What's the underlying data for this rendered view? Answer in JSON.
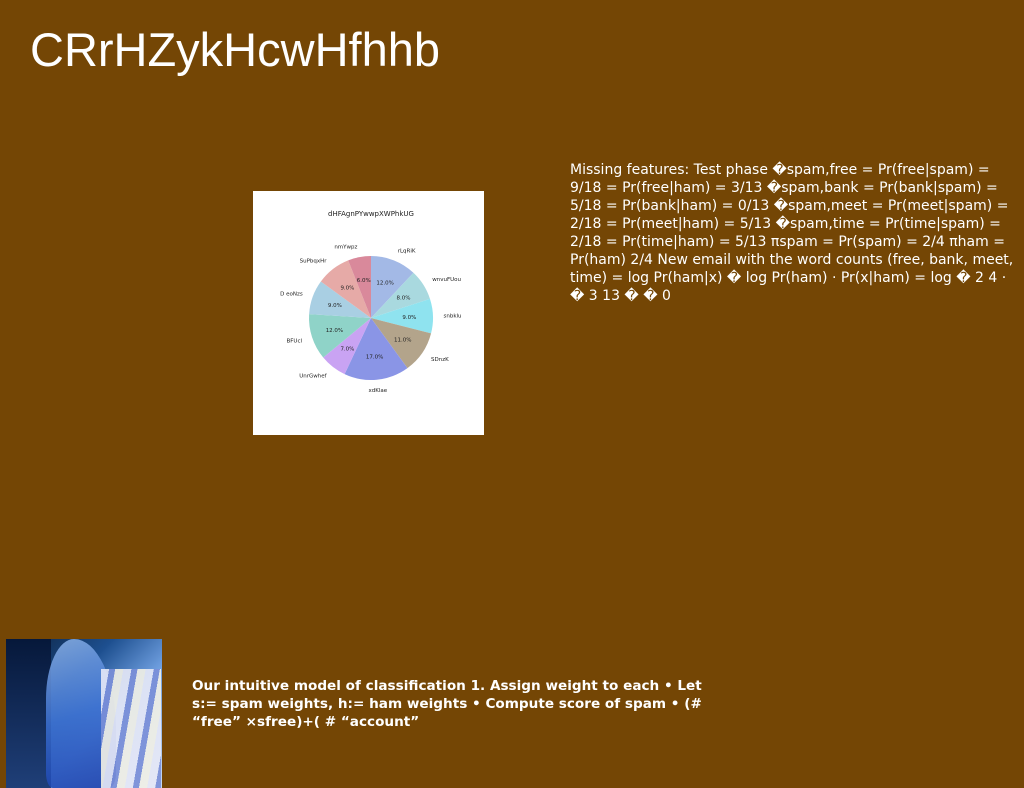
{
  "title": "CRrHZykHcwHfhhb",
  "chart_data": {
    "type": "pie",
    "title": "dHFAgnPYwwpXWPhkUG",
    "slices": [
      {
        "label": "rLqRiK",
        "value": 12.0,
        "pct_label": "12.0%",
        "color": "#a3b9e6"
      },
      {
        "label": "wnvuFUou",
        "value": 8.0,
        "pct_label": "8.0%",
        "color": "#a9d9df"
      },
      {
        "label": "snbklu",
        "value": 9.0,
        "pct_label": "9.0%",
        "color": "#8fe3ef"
      },
      {
        "label": "SDnzK",
        "value": 11.0,
        "pct_label": "11.0%",
        "color": "#b3a48b"
      },
      {
        "label": "xdKlae",
        "value": 17.0,
        "pct_label": "17.0%",
        "color": "#8a95e6"
      },
      {
        "label": "UnrGwhef",
        "value": 7.0,
        "pct_label": "7.0%",
        "color": "#c9a3f3"
      },
      {
        "label": "BFUcl",
        "value": 12.0,
        "pct_label": "12.0%",
        "color": "#8fd3c8"
      },
      {
        "label": "D eoNzs",
        "value": 9.0,
        "pct_label": "9.0%",
        "color": "#a9cfe3"
      },
      {
        "label": "SuPbqxHr",
        "value": 9.0,
        "pct_label": "9.0%",
        "color": "#e6aaa7"
      },
      {
        "label": "nmYwpz",
        "value": 6.0,
        "pct_label": "6.0%",
        "color": "#d9899b"
      }
    ]
  },
  "side_text": "Missing features: Test phase �spam,free = Pr(free|spam) = 9/18 = Pr(free|ham) = 3/13 �spam,bank = Pr(bank|spam) = 5/18 = Pr(bank|ham) = 0/13 �spam,meet = Pr(meet|spam) = 2/18 = Pr(meet|ham) = 5/13 �spam,time = Pr(time|spam) = 2/18 = Pr(time|ham) = 5/13 πspam = Pr(spam) = 2/4 πham = Pr(ham) 2/4 New email with the word counts (free, bank, meet, time) = log Pr(ham|x) � log Pr(ham) · Pr(x|ham) = log � 2 4 · � 3 13 � � 0",
  "bottom_text": "Our intuitive model of classification 1. Assign weight to each • Let s:= spam weights, h:= ham weights • Compute score of spam • (# “free” ×sfree)+( # “account”"
}
